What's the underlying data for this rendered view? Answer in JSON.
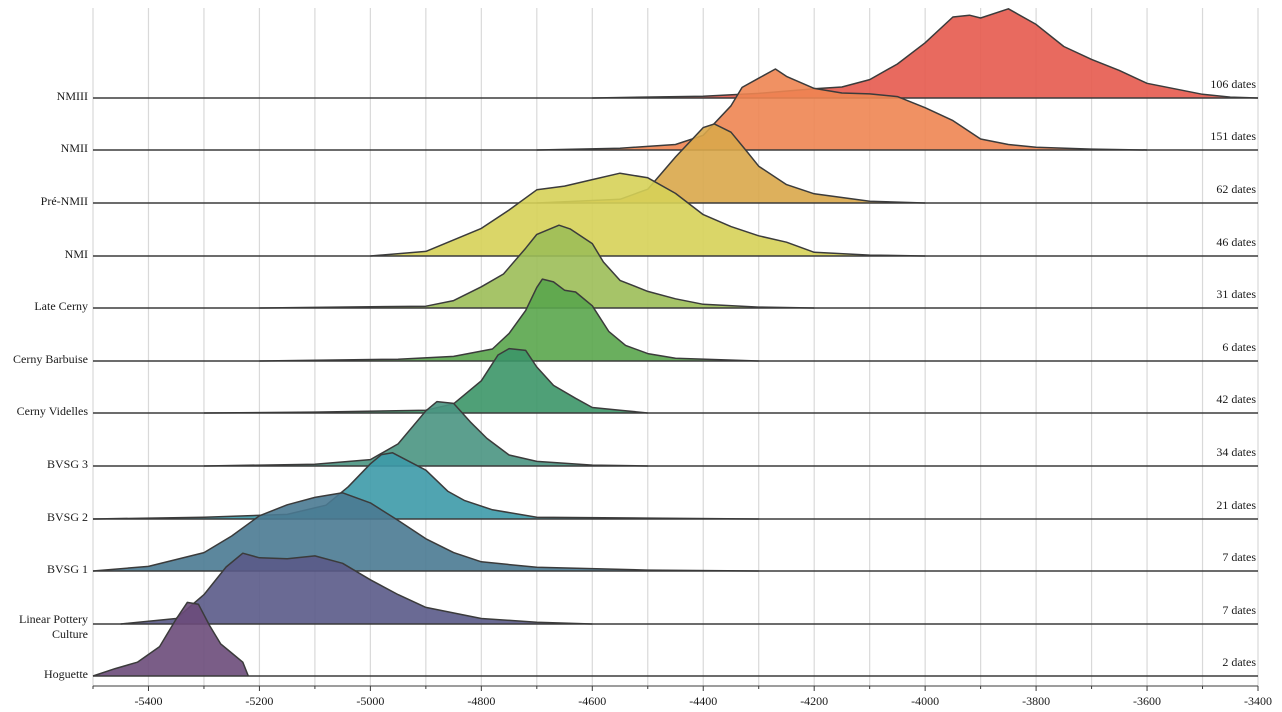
{
  "chart_data": {
    "type": "ridgeline",
    "x_range": [
      -5500,
      -3400
    ],
    "x_ticks": [
      "-5400",
      "-5200",
      "-5000",
      "-4800",
      "-4600",
      "-4400",
      "-4200",
      "-4000",
      "-3800",
      "-3600",
      "-3400"
    ],
    "x_tick_values": [
      -5400,
      -5200,
      -5000,
      -4800,
      -4600,
      -4400,
      -4200,
      -4000,
      -3800,
      -3600,
      -3400
    ],
    "grid": "vertical every 100",
    "series": [
      {
        "name": "NMIII",
        "count_label": "106 dates",
        "color": "#e55a4e",
        "density": [
          [
            -4600,
            0
          ],
          [
            -4400,
            0.02
          ],
          [
            -4300,
            0.05
          ],
          [
            -4200,
            0.1
          ],
          [
            -4150,
            0.12
          ],
          [
            -4100,
            0.2
          ],
          [
            -4050,
            0.37
          ],
          [
            -4000,
            0.6
          ],
          [
            -3950,
            0.88
          ],
          [
            -3920,
            0.9
          ],
          [
            -3900,
            0.87
          ],
          [
            -3850,
            0.97
          ],
          [
            -3800,
            0.8
          ],
          [
            -3750,
            0.56
          ],
          [
            -3700,
            0.42
          ],
          [
            -3650,
            0.3
          ],
          [
            -3600,
            0.16
          ],
          [
            -3550,
            0.1
          ],
          [
            -3500,
            0.04
          ],
          [
            -3450,
            0.01
          ],
          [
            -3400,
            0
          ]
        ]
      },
      {
        "name": "NMII",
        "count_label": "151 dates",
        "color": "#ee8552",
        "density": [
          [
            -4700,
            0
          ],
          [
            -4550,
            0.02
          ],
          [
            -4450,
            0.06
          ],
          [
            -4400,
            0.16
          ],
          [
            -4350,
            0.48
          ],
          [
            -4330,
            0.68
          ],
          [
            -4300,
            0.78
          ],
          [
            -4270,
            0.88
          ],
          [
            -4250,
            0.8
          ],
          [
            -4200,
            0.67
          ],
          [
            -4150,
            0.62
          ],
          [
            -4100,
            0.61
          ],
          [
            -4050,
            0.58
          ],
          [
            -4000,
            0.46
          ],
          [
            -3950,
            0.32
          ],
          [
            -3900,
            0.12
          ],
          [
            -3850,
            0.06
          ],
          [
            -3800,
            0.03
          ],
          [
            -3700,
            0.01
          ],
          [
            -3600,
            0
          ]
        ]
      },
      {
        "name": "Pré-NMII",
        "count_label": "62 dates",
        "color": "#d9a74a",
        "density": [
          [
            -4700,
            0
          ],
          [
            -4550,
            0.04
          ],
          [
            -4500,
            0.15
          ],
          [
            -4450,
            0.5
          ],
          [
            -4400,
            0.82
          ],
          [
            -4380,
            0.86
          ],
          [
            -4350,
            0.77
          ],
          [
            -4320,
            0.55
          ],
          [
            -4300,
            0.4
          ],
          [
            -4250,
            0.2
          ],
          [
            -4200,
            0.1
          ],
          [
            -4100,
            0.02
          ],
          [
            -4000,
            0
          ]
        ]
      },
      {
        "name": "NMI",
        "count_label": "46 dates",
        "color": "#d6d258",
        "density": [
          [
            -5000,
            0
          ],
          [
            -4900,
            0.05
          ],
          [
            -4800,
            0.3
          ],
          [
            -4750,
            0.5
          ],
          [
            -4700,
            0.72
          ],
          [
            -4650,
            0.76
          ],
          [
            -4600,
            0.83
          ],
          [
            -4550,
            0.9
          ],
          [
            -4500,
            0.85
          ],
          [
            -4450,
            0.68
          ],
          [
            -4400,
            0.45
          ],
          [
            -4350,
            0.32
          ],
          [
            -4300,
            0.22
          ],
          [
            -4250,
            0.15
          ],
          [
            -4200,
            0.04
          ],
          [
            -4100,
            0.01
          ],
          [
            -4000,
            0
          ]
        ]
      },
      {
        "name": "Late Cerny",
        "count_label": "31 dates",
        "color": "#9cbe58",
        "density": [
          [
            -5200,
            0
          ],
          [
            -4900,
            0.02
          ],
          [
            -4850,
            0.08
          ],
          [
            -4800,
            0.23
          ],
          [
            -4760,
            0.37
          ],
          [
            -4720,
            0.65
          ],
          [
            -4700,
            0.8
          ],
          [
            -4660,
            0.9
          ],
          [
            -4640,
            0.86
          ],
          [
            -4600,
            0.7
          ],
          [
            -4580,
            0.5
          ],
          [
            -4550,
            0.3
          ],
          [
            -4500,
            0.18
          ],
          [
            -4450,
            0.1
          ],
          [
            -4400,
            0.04
          ],
          [
            -4300,
            0.01
          ],
          [
            -4200,
            0
          ]
        ]
      },
      {
        "name": "Cerny Barbuise",
        "count_label": "6 dates",
        "color": "#5aa64c",
        "density": [
          [
            -5200,
            0
          ],
          [
            -4950,
            0.02
          ],
          [
            -4850,
            0.05
          ],
          [
            -4780,
            0.13
          ],
          [
            -4750,
            0.3
          ],
          [
            -4720,
            0.55
          ],
          [
            -4700,
            0.8
          ],
          [
            -4690,
            0.89
          ],
          [
            -4670,
            0.86
          ],
          [
            -4650,
            0.77
          ],
          [
            -4630,
            0.75
          ],
          [
            -4600,
            0.6
          ],
          [
            -4570,
            0.32
          ],
          [
            -4540,
            0.17
          ],
          [
            -4500,
            0.08
          ],
          [
            -4450,
            0.03
          ],
          [
            -4300,
            0
          ]
        ]
      },
      {
        "name": "Cerny Videlles",
        "count_label": "42 dates",
        "color": "#3c9668",
        "density": [
          [
            -5300,
            0
          ],
          [
            -5100,
            0.01
          ],
          [
            -4900,
            0.03
          ],
          [
            -4850,
            0.1
          ],
          [
            -4800,
            0.35
          ],
          [
            -4770,
            0.63
          ],
          [
            -4750,
            0.7
          ],
          [
            -4720,
            0.68
          ],
          [
            -4700,
            0.5
          ],
          [
            -4670,
            0.3
          ],
          [
            -4630,
            0.16
          ],
          [
            -4600,
            0.06
          ],
          [
            -4550,
            0.03
          ],
          [
            -4500,
            0
          ]
        ]
      },
      {
        "name": "BVSG 3",
        "count_label": "34 dates",
        "color": "#4a9582",
        "density": [
          [
            -5300,
            0
          ],
          [
            -5100,
            0.02
          ],
          [
            -5000,
            0.07
          ],
          [
            -4950,
            0.24
          ],
          [
            -4900,
            0.6
          ],
          [
            -4880,
            0.7
          ],
          [
            -4850,
            0.68
          ],
          [
            -4820,
            0.48
          ],
          [
            -4790,
            0.3
          ],
          [
            -4750,
            0.12
          ],
          [
            -4700,
            0.05
          ],
          [
            -4600,
            0.01
          ],
          [
            -4500,
            0
          ]
        ]
      },
      {
        "name": "BVSG 2",
        "count_label": "21 dates",
        "color": "#3d9aa8",
        "density": [
          [
            -5500,
            0
          ],
          [
            -5300,
            0.02
          ],
          [
            -5150,
            0.05
          ],
          [
            -5080,
            0.15
          ],
          [
            -5040,
            0.35
          ],
          [
            -5000,
            0.6
          ],
          [
            -4980,
            0.7
          ],
          [
            -4960,
            0.72
          ],
          [
            -4900,
            0.53
          ],
          [
            -4860,
            0.3
          ],
          [
            -4830,
            0.2
          ],
          [
            -4780,
            0.1
          ],
          [
            -4700,
            0.02
          ],
          [
            -4500,
            0.01
          ],
          [
            -4300,
            0
          ]
        ]
      },
      {
        "name": "BVSG 1",
        "count_label": "7 dates",
        "color": "#4a7a92",
        "density": [
          [
            -5500,
            0
          ],
          [
            -5400,
            0.05
          ],
          [
            -5300,
            0.2
          ],
          [
            -5250,
            0.38
          ],
          [
            -5200,
            0.6
          ],
          [
            -5150,
            0.72
          ],
          [
            -5100,
            0.8
          ],
          [
            -5050,
            0.85
          ],
          [
            -5000,
            0.74
          ],
          [
            -4950,
            0.55
          ],
          [
            -4900,
            0.35
          ],
          [
            -4850,
            0.2
          ],
          [
            -4800,
            0.1
          ],
          [
            -4700,
            0.04
          ],
          [
            -4500,
            0.01
          ],
          [
            -4300,
            0
          ]
        ]
      },
      {
        "name": "Linear Pottery Culture",
        "count_label": "7 dates",
        "color": "#5a5a88",
        "density": [
          [
            -5450,
            0
          ],
          [
            -5350,
            0.06
          ],
          [
            -5300,
            0.32
          ],
          [
            -5260,
            0.62
          ],
          [
            -5230,
            0.77
          ],
          [
            -5200,
            0.72
          ],
          [
            -5150,
            0.71
          ],
          [
            -5100,
            0.74
          ],
          [
            -5050,
            0.66
          ],
          [
            -5000,
            0.48
          ],
          [
            -4950,
            0.32
          ],
          [
            -4900,
            0.18
          ],
          [
            -4800,
            0.06
          ],
          [
            -4700,
            0.02
          ],
          [
            -4600,
            0
          ]
        ]
      },
      {
        "name": "Hoguette",
        "count_label": "2 dates",
        "color": "#6b4b7a",
        "density": [
          [
            -5500,
            0
          ],
          [
            -5460,
            0.08
          ],
          [
            -5420,
            0.15
          ],
          [
            -5380,
            0.32
          ],
          [
            -5350,
            0.62
          ],
          [
            -5330,
            0.8
          ],
          [
            -5310,
            0.78
          ],
          [
            -5290,
            0.55
          ],
          [
            -5270,
            0.35
          ],
          [
            -5250,
            0.25
          ],
          [
            -5230,
            0.15
          ],
          [
            -5220,
            0
          ]
        ]
      }
    ]
  }
}
